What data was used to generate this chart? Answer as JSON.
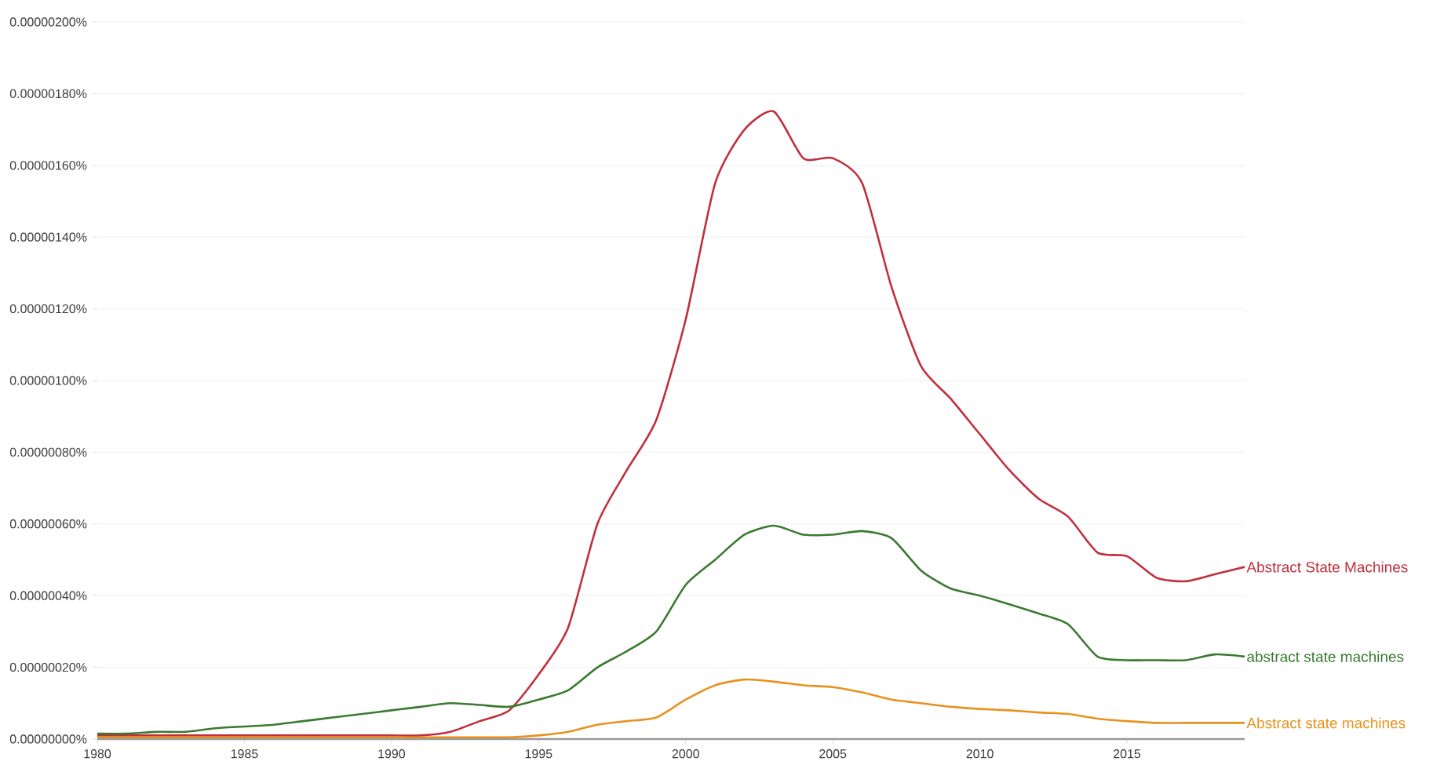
{
  "chart_data": {
    "type": "line",
    "x": [
      1980,
      1981,
      1982,
      1983,
      1984,
      1985,
      1986,
      1987,
      1988,
      1989,
      1990,
      1991,
      1992,
      1993,
      1994,
      1995,
      1996,
      1997,
      1998,
      1999,
      2000,
      2001,
      2002,
      2003,
      2004,
      2005,
      2006,
      2007,
      2008,
      2009,
      2010,
      2011,
      2012,
      2013,
      2014,
      2015,
      2016,
      2017,
      2018,
      2019
    ],
    "series": [
      {
        "name": "Abstract State Machines",
        "color": "#c0303c",
        "values": [
          1e-08,
          1e-08,
          1e-08,
          1e-08,
          1e-08,
          1e-08,
          1e-08,
          1e-08,
          1e-08,
          1e-08,
          1e-08,
          1e-08,
          2e-08,
          5e-08,
          8e-08,
          1.8e-07,
          3.1e-07,
          6e-07,
          7.5e-07,
          8.9e-07,
          1.17e-06,
          1.55e-06,
          1.7e-06,
          1.75e-06,
          1.62e-06,
          1.62e-06,
          1.55e-06,
          1.26e-06,
          1.04e-06,
          9.5e-07,
          8.5e-07,
          7.5e-07,
          6.7e-07,
          6.2e-07,
          5.2e-07,
          5.1e-07,
          4.5e-07,
          4.4e-07,
          4.6e-07,
          4.8e-07
        ]
      },
      {
        "name": "abstract state machines",
        "color": "#3a7a30",
        "values": [
          1.5e-08,
          1.5e-08,
          2e-08,
          2e-08,
          3e-08,
          3.5e-08,
          4e-08,
          5e-08,
          6e-08,
          7e-08,
          8e-08,
          9e-08,
          1e-07,
          9.5e-08,
          9e-08,
          1.1e-07,
          1.36e-07,
          2e-07,
          2.45e-07,
          3e-07,
          4.3e-07,
          5e-07,
          5.7e-07,
          5.95e-07,
          5.7e-07,
          5.7e-07,
          5.8e-07,
          5.6e-07,
          4.7e-07,
          4.2e-07,
          4e-07,
          3.76e-07,
          3.5e-07,
          3.2e-07,
          2.3e-07,
          2.2e-07,
          2.2e-07,
          2.2e-07,
          2.36e-07,
          2.3e-07
        ]
      },
      {
        "name": "Abstract state machines",
        "color": "#e8921e",
        "values": [
          5e-09,
          5e-09,
          5e-09,
          5e-09,
          5e-09,
          5e-09,
          5e-09,
          5e-09,
          5e-09,
          5e-09,
          5e-09,
          5e-09,
          5e-09,
          5e-09,
          5e-09,
          1e-08,
          2e-08,
          4e-08,
          5e-08,
          6e-08,
          1.1e-07,
          1.5e-07,
          1.66e-07,
          1.6e-07,
          1.5e-07,
          1.45e-07,
          1.3e-07,
          1.1e-07,
          1e-07,
          9e-08,
          8.4e-08,
          8e-08,
          7.4e-08,
          7e-08,
          5.7e-08,
          5e-08,
          4.5e-08,
          4.5e-08,
          4.5e-08,
          4.5e-08
        ]
      }
    ],
    "xlim": [
      1980,
      2019
    ],
    "xticks": [
      1980,
      1985,
      1990,
      1995,
      2000,
      2005,
      2010,
      2015
    ],
    "ylim": [
      0,
      2e-06
    ],
    "yticks": [
      {
        "value": 0,
        "label": "0.00000000%"
      },
      {
        "value": 2e-07,
        "label": "0.00000020%"
      },
      {
        "value": 4e-07,
        "label": "0.00000040%"
      },
      {
        "value": 6e-07,
        "label": "0.00000060%"
      },
      {
        "value": 8e-07,
        "label": "0.00000080%"
      },
      {
        "value": 1e-06,
        "label": "0.00000100%"
      },
      {
        "value": 1.2e-06,
        "label": "0.00000120%"
      },
      {
        "value": 1.4e-06,
        "label": "0.00000140%"
      },
      {
        "value": 1.6e-06,
        "label": "0.00000160%"
      },
      {
        "value": 1.8e-06,
        "label": "0.00000180%"
      },
      {
        "value": 2e-06,
        "label": "0.00000200%"
      }
    ],
    "grid": "y"
  }
}
